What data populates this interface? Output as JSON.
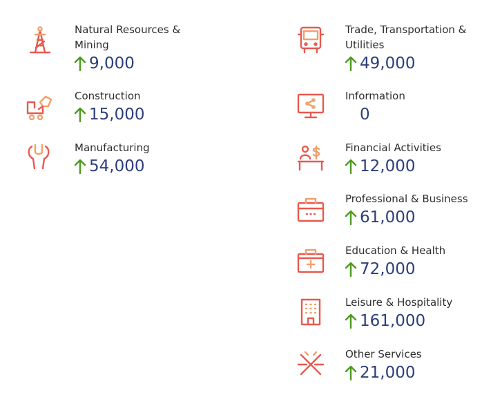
{
  "colors": {
    "icon_primary": "#e8594e",
    "icon_secondary": "#f0a06c",
    "value": "#2c3e7a",
    "arrow": "#4c9a1e"
  },
  "industries": {
    "natural_resources": {
      "label_line1": "Natural Resources &",
      "label_line2": "Mining",
      "value": "9,000",
      "icon": "oil-derrick-icon",
      "trend": "up"
    },
    "construction": {
      "label": "Construction",
      "value": "15,000",
      "icon": "construction-icon",
      "trend": "up"
    },
    "manufacturing": {
      "label": "Manufacturing",
      "value": "54,000",
      "icon": "wrench-icon",
      "trend": "up"
    },
    "trade": {
      "label_line1": "Trade, Transportation &",
      "label_line2": "Utilities",
      "value": "49,000",
      "icon": "bus-icon",
      "trend": "up"
    },
    "information": {
      "label": "Information",
      "value": "0",
      "icon": "monitor-share-icon",
      "trend": "none"
    },
    "financial": {
      "label": "Financial Activities",
      "value": "12,000",
      "icon": "banker-icon",
      "trend": "up"
    },
    "professional": {
      "label": "Professional & Business",
      "value": "61,000",
      "icon": "briefcase-icon",
      "trend": "up"
    },
    "education": {
      "label": "Education & Health",
      "value": "72,000",
      "icon": "medical-kit-icon",
      "trend": "up"
    },
    "leisure": {
      "label": "Leisure & Hospitality",
      "value": "161,000",
      "icon": "hotel-icon",
      "trend": "up"
    },
    "other": {
      "label": "Other Services",
      "value": "21,000",
      "icon": "crossed-tools-icon",
      "trend": "up"
    }
  }
}
